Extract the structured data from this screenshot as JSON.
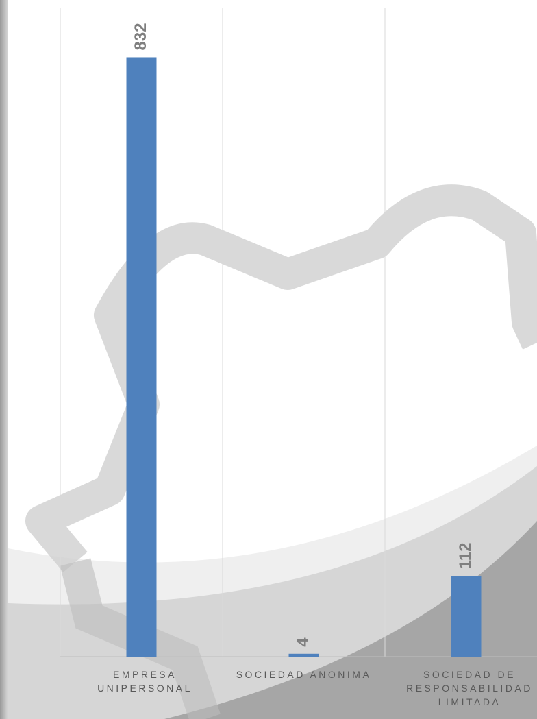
{
  "chart_data": {
    "type": "bar",
    "categories": [
      "EMPRESA UNIPERSONAL",
      "SOCIEDAD ANONIMA",
      "SOCIEDAD DE RESPONSABILIDAD LIMITADA"
    ],
    "values": [
      832,
      4,
      112
    ],
    "color": "#4f81bd",
    "ylim": [
      0,
      900
    ]
  }
}
